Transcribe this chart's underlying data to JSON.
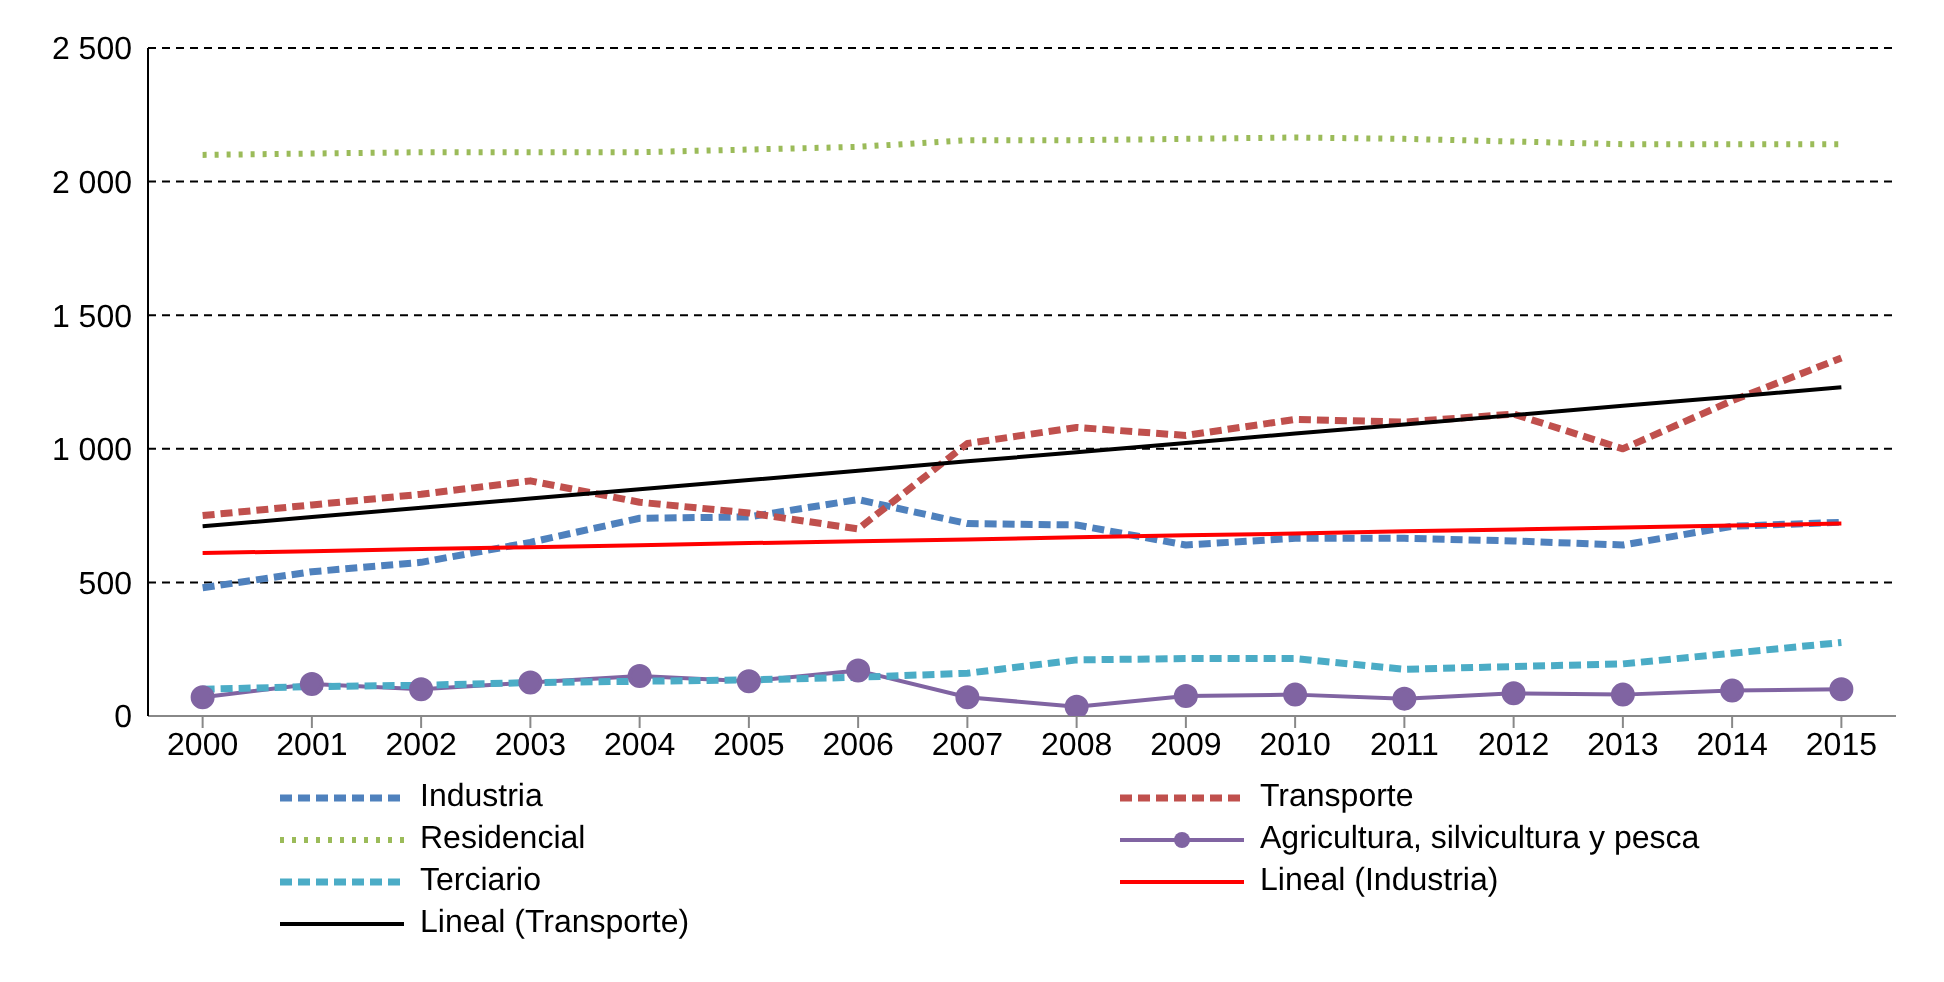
{
  "chart_data": {
    "type": "line",
    "categories": [
      "2000",
      "2001",
      "2002",
      "2003",
      "2004",
      "2005",
      "2006",
      "2007",
      "2008",
      "2009",
      "2010",
      "2011",
      "2012",
      "2013",
      "2014",
      "2015"
    ],
    "series": [
      {
        "name": "Industria",
        "color": "#4f81bd",
        "line_style": "dashed",
        "marker": "none",
        "values": [
          480,
          540,
          575,
          650,
          740,
          745,
          810,
          720,
          715,
          640,
          665,
          665,
          655,
          640,
          710,
          725
        ]
      },
      {
        "name": "Transporte",
        "color": "#c0504d",
        "line_style": "dashed",
        "marker": "none",
        "values": [
          750,
          790,
          830,
          880,
          800,
          760,
          700,
          1020,
          1080,
          1050,
          1110,
          1100,
          1130,
          1000,
          1180,
          1340
        ]
      },
      {
        "name": "Residencial",
        "color": "#9bbb59",
        "line_style": "dotted",
        "marker": "none",
        "values": [
          2100,
          2105,
          2110,
          2110,
          2110,
          2120,
          2130,
          2155,
          2155,
          2160,
          2165,
          2160,
          2150,
          2140,
          2140,
          2140
        ]
      },
      {
        "name": "Agricultura, silvicultura y pesca",
        "color": "#8064a2",
        "line_style": "solid",
        "marker": "circle",
        "values": [
          70,
          120,
          100,
          125,
          150,
          130,
          170,
          70,
          35,
          75,
          80,
          65,
          85,
          80,
          95,
          100
        ]
      },
      {
        "name": "Terciario",
        "color": "#4bacc6",
        "line_style": "dashed",
        "marker": "none",
        "values": [
          100,
          110,
          115,
          125,
          130,
          135,
          145,
          160,
          210,
          215,
          215,
          175,
          185,
          195,
          235,
          275
        ]
      },
      {
        "name": "Lineal (Industria)",
        "color": "#ff0000",
        "line_style": "solid",
        "marker": "none",
        "values": [
          610,
          617,
          625,
          632,
          639,
          647,
          654,
          661,
          669,
          676,
          683,
          691,
          698,
          705,
          713,
          720
        ]
      },
      {
        "name": "Lineal (Transporte)",
        "color": "#000000",
        "line_style": "solid",
        "marker": "none",
        "values": [
          710,
          745,
          779,
          814,
          849,
          883,
          918,
          953,
          987,
          1022,
          1057,
          1091,
          1126,
          1161,
          1195,
          1230
        ]
      }
    ],
    "ylim": [
      0,
      2500
    ],
    "yticks": [
      0,
      {
        "value": 500,
        "label": "500"
      },
      {
        "value": 1000,
        "label": "1 000"
      },
      {
        "value": 1500,
        "label": "1 500"
      },
      {
        "value": 2000,
        "label": "2 000"
      },
      {
        "value": 2500,
        "label": "2 500"
      }
    ],
    "grid": "y",
    "legend": "bottom"
  }
}
